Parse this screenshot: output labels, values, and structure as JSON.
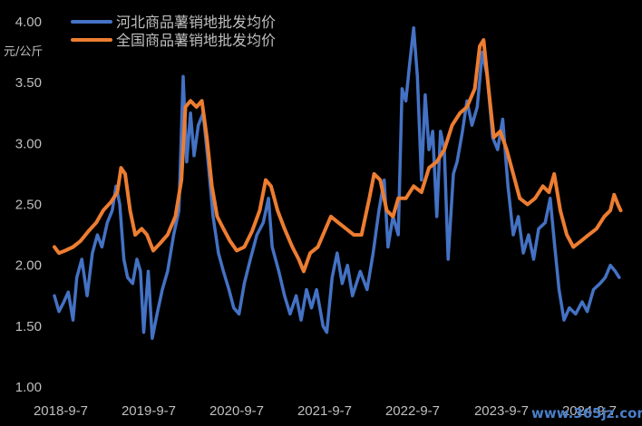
{
  "chart_data": {
    "type": "line",
    "ylabel": "元/公斤",
    "ylim": [
      1.0,
      4.0
    ],
    "yticks": [
      "1.00",
      "1.50",
      "2.00",
      "2.50",
      "3.00",
      "3.50",
      "4.00"
    ],
    "xticks": [
      "2018-9-7",
      "2019-9-7",
      "2020-9-7",
      "2021-9-7",
      "2022-9-7",
      "2023-9-7",
      "2024-9-7"
    ],
    "xlim": [
      "2018-09-07",
      "2024-12-31"
    ],
    "grid": false,
    "legend_position": "top-left",
    "series": [
      {
        "name": "河北商品薯销地批发均价",
        "color": "#4472c4",
        "points": [
          [
            "2018-09-07",
            1.75
          ],
          [
            "2018-09-25",
            1.62
          ],
          [
            "2018-10-15",
            1.7
          ],
          [
            "2018-11-01",
            1.78
          ],
          [
            "2018-11-20",
            1.55
          ],
          [
            "2018-12-05",
            1.9
          ],
          [
            "2018-12-25",
            2.05
          ],
          [
            "2019-01-15",
            1.75
          ],
          [
            "2019-02-05",
            2.1
          ],
          [
            "2019-02-25",
            2.25
          ],
          [
            "2019-03-15",
            2.15
          ],
          [
            "2019-04-05",
            2.35
          ],
          [
            "2019-04-25",
            2.45
          ],
          [
            "2019-05-10",
            2.65
          ],
          [
            "2019-05-25",
            2.5
          ],
          [
            "2019-06-10",
            2.05
          ],
          [
            "2019-06-25",
            1.9
          ],
          [
            "2019-07-15",
            1.85
          ],
          [
            "2019-08-01",
            2.05
          ],
          [
            "2019-08-15",
            1.95
          ],
          [
            "2019-08-28",
            1.45
          ],
          [
            "2019-09-15",
            1.95
          ],
          [
            "2019-10-01",
            1.4
          ],
          [
            "2019-10-20",
            1.6
          ],
          [
            "2019-11-10",
            1.8
          ],
          [
            "2019-12-01",
            1.95
          ],
          [
            "2019-12-25",
            2.25
          ],
          [
            "2020-01-15",
            2.45
          ],
          [
            "2020-02-01",
            3.55
          ],
          [
            "2020-02-15",
            2.85
          ],
          [
            "2020-03-01",
            3.25
          ],
          [
            "2020-03-15",
            2.9
          ],
          [
            "2020-04-01",
            3.15
          ],
          [
            "2020-04-20",
            3.25
          ],
          [
            "2020-05-10",
            2.85
          ],
          [
            "2020-05-30",
            2.4
          ],
          [
            "2020-06-20",
            2.1
          ],
          [
            "2020-07-10",
            1.95
          ],
          [
            "2020-08-01",
            1.8
          ],
          [
            "2020-08-20",
            1.65
          ],
          [
            "2020-09-10",
            1.6
          ],
          [
            "2020-10-01",
            1.85
          ],
          [
            "2020-10-25",
            2.05
          ],
          [
            "2020-11-20",
            2.25
          ],
          [
            "2020-12-15",
            2.35
          ],
          [
            "2021-01-05",
            2.55
          ],
          [
            "2021-01-20",
            2.15
          ],
          [
            "2021-02-15",
            1.95
          ],
          [
            "2021-03-10",
            1.75
          ],
          [
            "2021-04-01",
            1.6
          ],
          [
            "2021-04-25",
            1.75
          ],
          [
            "2021-05-15",
            1.55
          ],
          [
            "2021-06-05",
            1.8
          ],
          [
            "2021-06-25",
            1.65
          ],
          [
            "2021-07-15",
            1.8
          ],
          [
            "2021-08-10",
            1.5
          ],
          [
            "2021-08-25",
            1.45
          ],
          [
            "2021-09-15",
            1.9
          ],
          [
            "2021-10-05",
            2.1
          ],
          [
            "2021-10-25",
            1.85
          ],
          [
            "2021-11-15",
            2.0
          ],
          [
            "2021-12-05",
            1.75
          ],
          [
            "2022-01-05",
            1.95
          ],
          [
            "2022-02-01",
            1.8
          ],
          [
            "2022-02-25",
            2.1
          ],
          [
            "2022-03-20",
            2.45
          ],
          [
            "2022-04-10",
            2.7
          ],
          [
            "2022-04-25",
            2.15
          ],
          [
            "2022-05-15",
            2.4
          ],
          [
            "2022-06-05",
            2.25
          ],
          [
            "2022-06-20",
            3.45
          ],
          [
            "2022-07-05",
            3.35
          ],
          [
            "2022-07-20",
            3.65
          ],
          [
            "2022-08-05",
            3.95
          ],
          [
            "2022-08-20",
            3.55
          ],
          [
            "2022-09-05",
            2.7
          ],
          [
            "2022-09-20",
            3.4
          ],
          [
            "2022-10-05",
            2.95
          ],
          [
            "2022-10-20",
            3.1
          ],
          [
            "2022-11-05",
            2.4
          ],
          [
            "2022-11-20",
            3.1
          ],
          [
            "2022-12-05",
            2.95
          ],
          [
            "2022-12-20",
            2.05
          ],
          [
            "2023-01-10",
            2.75
          ],
          [
            "2023-01-25",
            2.85
          ],
          [
            "2023-02-15",
            3.1
          ],
          [
            "2023-03-05",
            3.35
          ],
          [
            "2023-03-25",
            3.15
          ],
          [
            "2023-04-15",
            3.3
          ],
          [
            "2023-05-05",
            3.75
          ],
          [
            "2023-05-25",
            3.55
          ],
          [
            "2023-06-15",
            3.05
          ],
          [
            "2023-07-05",
            2.95
          ],
          [
            "2023-07-25",
            3.2
          ],
          [
            "2023-08-15",
            2.65
          ],
          [
            "2023-09-05",
            2.25
          ],
          [
            "2023-09-25",
            2.4
          ],
          [
            "2023-10-15",
            2.1
          ],
          [
            "2023-11-05",
            2.25
          ],
          [
            "2023-11-25",
            2.05
          ],
          [
            "2023-12-15",
            2.3
          ],
          [
            "2024-01-10",
            2.35
          ],
          [
            "2024-01-30",
            2.55
          ],
          [
            "2024-02-15",
            2.2
          ],
          [
            "2024-03-05",
            1.8
          ],
          [
            "2024-03-25",
            1.55
          ],
          [
            "2024-04-15",
            1.65
          ],
          [
            "2024-05-10",
            1.6
          ],
          [
            "2024-06-05",
            1.7
          ],
          [
            "2024-06-25",
            1.62
          ],
          [
            "2024-07-20",
            1.8
          ],
          [
            "2024-08-15",
            1.85
          ],
          [
            "2024-09-05",
            1.9
          ],
          [
            "2024-09-25",
            2.0
          ],
          [
            "2024-10-15",
            1.95
          ],
          [
            "2024-10-30",
            1.9
          ]
        ]
      },
      {
        "name": "全国商品薯销地批发均价",
        "color": "#ed7d31",
        "points": [
          [
            "2018-09-07",
            2.15
          ],
          [
            "2018-09-25",
            2.1
          ],
          [
            "2018-10-20",
            2.12
          ],
          [
            "2018-11-20",
            2.15
          ],
          [
            "2018-12-20",
            2.2
          ],
          [
            "2019-01-20",
            2.28
          ],
          [
            "2019-02-20",
            2.35
          ],
          [
            "2019-03-20",
            2.45
          ],
          [
            "2019-04-20",
            2.52
          ],
          [
            "2019-05-15",
            2.6
          ],
          [
            "2019-05-30",
            2.8
          ],
          [
            "2019-06-15",
            2.75
          ],
          [
            "2019-07-05",
            2.45
          ],
          [
            "2019-07-25",
            2.25
          ],
          [
            "2019-08-20",
            2.3
          ],
          [
            "2019-09-10",
            2.25
          ],
          [
            "2019-10-05",
            2.12
          ],
          [
            "2019-11-01",
            2.18
          ],
          [
            "2019-12-01",
            2.25
          ],
          [
            "2020-01-01",
            2.4
          ],
          [
            "2020-01-25",
            2.7
          ],
          [
            "2020-02-10",
            3.3
          ],
          [
            "2020-03-01",
            3.35
          ],
          [
            "2020-03-25",
            3.3
          ],
          [
            "2020-04-15",
            3.35
          ],
          [
            "2020-05-05",
            3.05
          ],
          [
            "2020-05-25",
            2.65
          ],
          [
            "2020-06-15",
            2.4
          ],
          [
            "2020-07-10",
            2.3
          ],
          [
            "2020-08-05",
            2.2
          ],
          [
            "2020-09-01",
            2.12
          ],
          [
            "2020-10-01",
            2.15
          ],
          [
            "2020-11-01",
            2.28
          ],
          [
            "2020-12-01",
            2.45
          ],
          [
            "2020-12-25",
            2.7
          ],
          [
            "2021-01-15",
            2.65
          ],
          [
            "2021-02-10",
            2.45
          ],
          [
            "2021-03-10",
            2.3
          ],
          [
            "2021-04-10",
            2.15
          ],
          [
            "2021-05-05",
            2.05
          ],
          [
            "2021-05-25",
            1.95
          ],
          [
            "2021-06-20",
            2.1
          ],
          [
            "2021-07-20",
            2.15
          ],
          [
            "2021-08-20",
            2.3
          ],
          [
            "2021-09-10",
            2.4
          ],
          [
            "2021-10-10",
            2.35
          ],
          [
            "2021-11-10",
            2.3
          ],
          [
            "2021-12-10",
            2.25
          ],
          [
            "2022-01-10",
            2.25
          ],
          [
            "2022-02-10",
            2.55
          ],
          [
            "2022-03-01",
            2.75
          ],
          [
            "2022-03-25",
            2.7
          ],
          [
            "2022-04-20",
            2.45
          ],
          [
            "2022-05-15",
            2.4
          ],
          [
            "2022-06-05",
            2.55
          ],
          [
            "2022-07-05",
            2.55
          ],
          [
            "2022-08-05",
            2.65
          ],
          [
            "2022-09-05",
            2.6
          ],
          [
            "2022-10-05",
            2.8
          ],
          [
            "2022-11-05",
            2.85
          ],
          [
            "2022-12-05",
            2.95
          ],
          [
            "2023-01-05",
            3.15
          ],
          [
            "2023-02-05",
            3.25
          ],
          [
            "2023-03-05",
            3.3
          ],
          [
            "2023-04-05",
            3.45
          ],
          [
            "2023-04-25",
            3.8
          ],
          [
            "2023-05-10",
            3.85
          ],
          [
            "2023-05-30",
            3.45
          ],
          [
            "2023-06-20",
            3.05
          ],
          [
            "2023-07-15",
            3.1
          ],
          [
            "2023-08-10",
            2.95
          ],
          [
            "2023-09-05",
            2.75
          ],
          [
            "2023-10-01",
            2.55
          ],
          [
            "2023-11-01",
            2.5
          ],
          [
            "2023-12-01",
            2.55
          ],
          [
            "2024-01-01",
            2.65
          ],
          [
            "2024-01-25",
            2.6
          ],
          [
            "2024-02-15",
            2.75
          ],
          [
            "2024-03-10",
            2.45
          ],
          [
            "2024-04-05",
            2.25
          ],
          [
            "2024-05-01",
            2.15
          ],
          [
            "2024-06-01",
            2.2
          ],
          [
            "2024-07-01",
            2.25
          ],
          [
            "2024-08-01",
            2.3
          ],
          [
            "2024-09-01",
            2.4
          ],
          [
            "2024-09-25",
            2.45
          ],
          [
            "2024-10-10",
            2.58
          ],
          [
            "2024-10-25",
            2.5
          ],
          [
            "2024-11-05",
            2.45
          ]
        ]
      }
    ]
  },
  "watermark": "www.365jz.com"
}
